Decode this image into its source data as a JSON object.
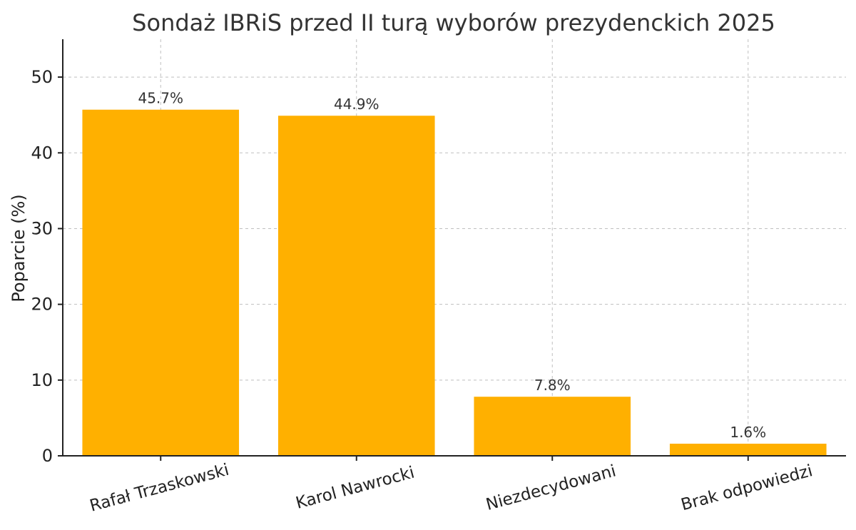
{
  "chart_data": {
    "type": "bar",
    "title": "Sondaż IBRiS przed II turą wyborów prezydenckich 2025",
    "xlabel": "",
    "ylabel": "Poparcie (%)",
    "categories": [
      "Rafał Trzaskowski",
      "Karol Nawrocki",
      "Niezdecydowani",
      "Brak odpowiedzi"
    ],
    "values": [
      45.7,
      44.9,
      7.8,
      1.6
    ],
    "value_labels": [
      "45.7%",
      "44.9%",
      "7.8%",
      "1.6%"
    ],
    "ylim": [
      0,
      55
    ],
    "yticks": [
      0,
      10,
      20,
      30,
      40,
      50
    ],
    "ytick_labels": [
      "0",
      "10",
      "20",
      "30",
      "40",
      "50"
    ],
    "grid": true,
    "bar_color": "#FFB000",
    "x_tick_rotation": "15deg"
  }
}
